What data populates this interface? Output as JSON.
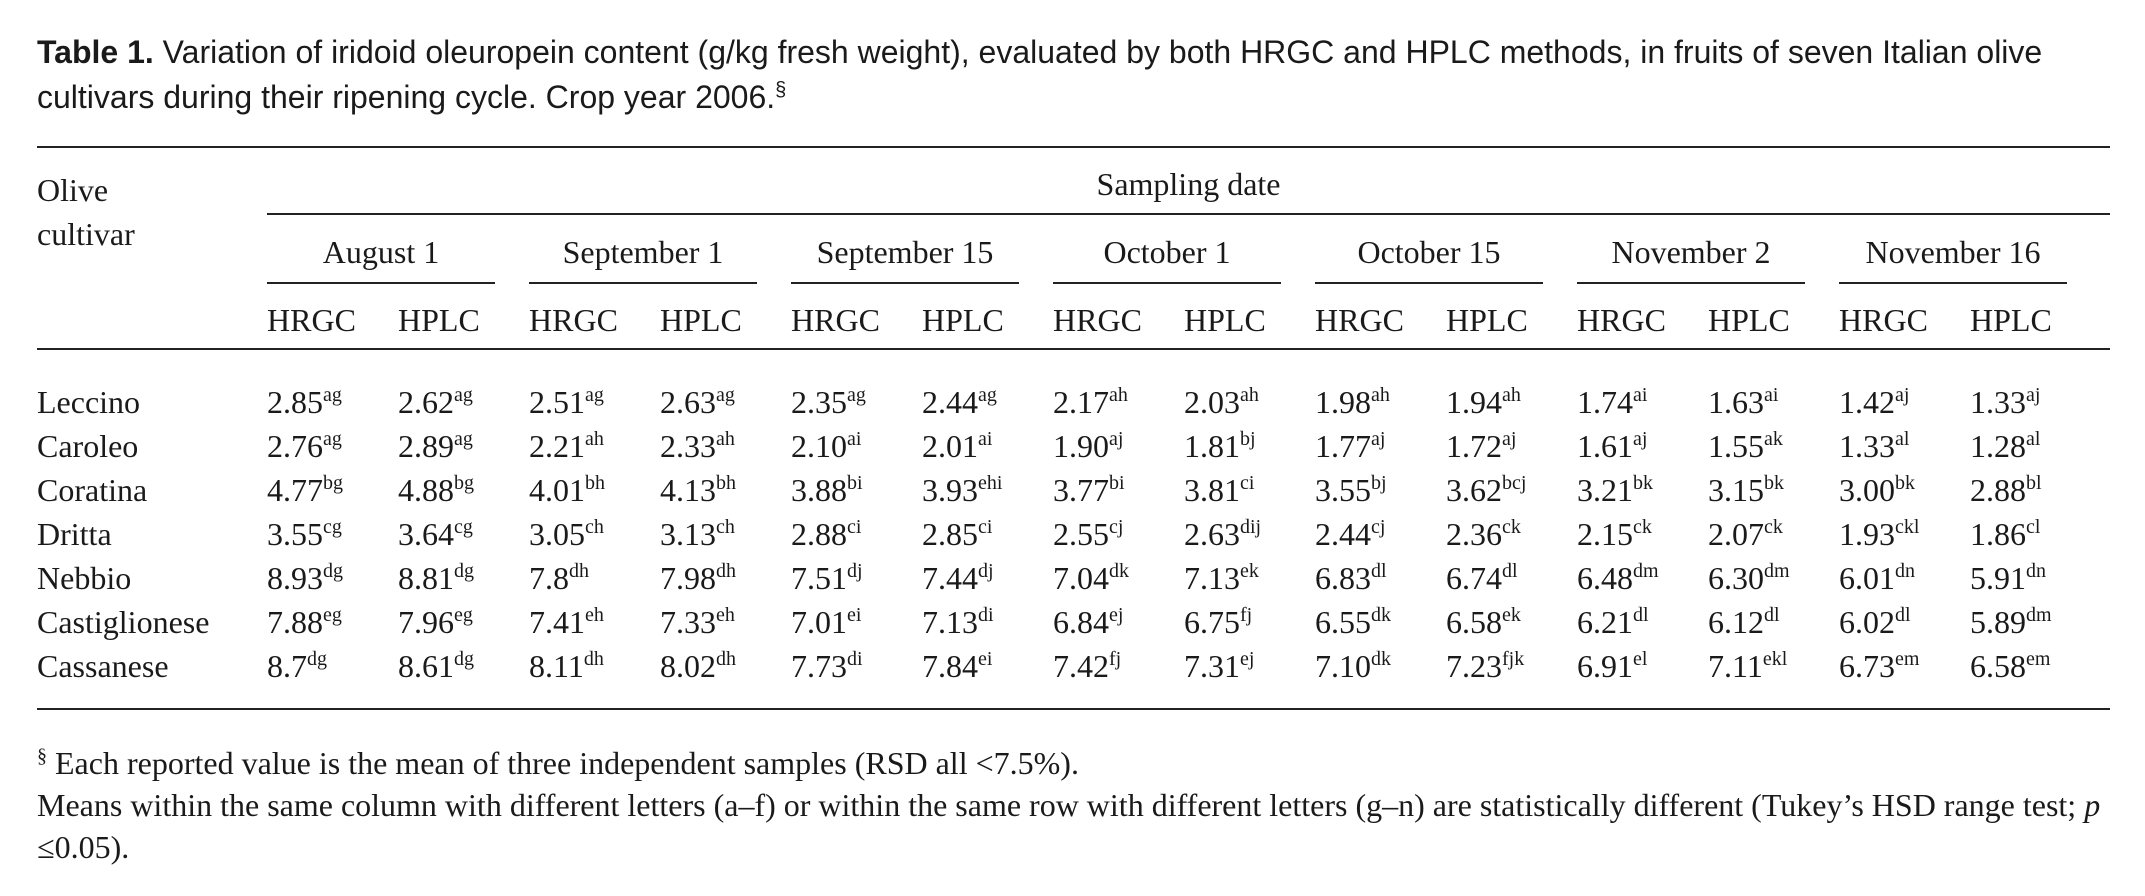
{
  "caption": {
    "label": "Table 1.",
    "text": "Variation of iridoid oleuropein content (g/kg fresh weight), evaluated by both HRGC and HPLC methods, in fruits of seven Italian olive cultivars during their ripening cycle. Crop year 2006.",
    "mark": "§"
  },
  "table": {
    "row_header": "Olive cultivar",
    "group_header": "Sampling date",
    "dates": [
      "August 1",
      "September 1",
      "September 15",
      "October 1",
      "October 15",
      "November 2",
      "November 16"
    ],
    "methods": [
      "HRGC",
      "HPLC"
    ],
    "rows": [
      {
        "cultivar": "Leccino",
        "cells": [
          [
            "2.85",
            "ag"
          ],
          [
            "2.62",
            "ag"
          ],
          [
            "2.51",
            "ag"
          ],
          [
            "2.63",
            "ag"
          ],
          [
            "2.35",
            "ag"
          ],
          [
            "2.44",
            "ag"
          ],
          [
            "2.17",
            "ah"
          ],
          [
            "2.03",
            "ah"
          ],
          [
            "1.98",
            "ah"
          ],
          [
            "1.94",
            "ah"
          ],
          [
            "1.74",
            "ai"
          ],
          [
            "1.63",
            "ai"
          ],
          [
            "1.42",
            "aj"
          ],
          [
            "1.33",
            "aj"
          ]
        ]
      },
      {
        "cultivar": "Caroleo",
        "cells": [
          [
            "2.76",
            "ag"
          ],
          [
            "2.89",
            "ag"
          ],
          [
            "2.21",
            "ah"
          ],
          [
            "2.33",
            "ah"
          ],
          [
            "2.10",
            "ai"
          ],
          [
            "2.01",
            "ai"
          ],
          [
            "1.90",
            "aj"
          ],
          [
            "1.81",
            "bj"
          ],
          [
            "1.77",
            "aj"
          ],
          [
            "1.72",
            "aj"
          ],
          [
            "1.61",
            "aj"
          ],
          [
            "1.55",
            "ak"
          ],
          [
            "1.33",
            "al"
          ],
          [
            "1.28",
            "al"
          ]
        ]
      },
      {
        "cultivar": "Coratina",
        "cells": [
          [
            "4.77",
            "bg"
          ],
          [
            "4.88",
            "bg"
          ],
          [
            "4.01",
            "bh"
          ],
          [
            "4.13",
            "bh"
          ],
          [
            "3.88",
            "bi"
          ],
          [
            "3.93",
            "ehi"
          ],
          [
            "3.77",
            "bi"
          ],
          [
            "3.81",
            "ci"
          ],
          [
            "3.55",
            "bj"
          ],
          [
            "3.62",
            "bcj"
          ],
          [
            "3.21",
            "bk"
          ],
          [
            "3.15",
            "bk"
          ],
          [
            "3.00",
            "bk"
          ],
          [
            "2.88",
            "bl"
          ]
        ]
      },
      {
        "cultivar": "Dritta",
        "cells": [
          [
            "3.55",
            "cg"
          ],
          [
            "3.64",
            "cg"
          ],
          [
            "3.05",
            "ch"
          ],
          [
            "3.13",
            "ch"
          ],
          [
            "2.88",
            "ci"
          ],
          [
            "2.85",
            "ci"
          ],
          [
            "2.55",
            "cj"
          ],
          [
            "2.63",
            "dij"
          ],
          [
            "2.44",
            "cj"
          ],
          [
            "2.36",
            "ck"
          ],
          [
            "2.15",
            "ck"
          ],
          [
            "2.07",
            "ck"
          ],
          [
            "1.93",
            "ckl"
          ],
          [
            "1.86",
            "cl"
          ]
        ]
      },
      {
        "cultivar": "Nebbio",
        "cells": [
          [
            "8.93",
            "dg"
          ],
          [
            "8.81",
            "dg"
          ],
          [
            "7.8",
            "dh"
          ],
          [
            "7.98",
            "dh"
          ],
          [
            "7.51",
            "dj"
          ],
          [
            "7.44",
            "dj"
          ],
          [
            "7.04",
            "dk"
          ],
          [
            "7.13",
            "ek"
          ],
          [
            "6.83",
            "dl"
          ],
          [
            "6.74",
            "dl"
          ],
          [
            "6.48",
            "dm"
          ],
          [
            "6.30",
            "dm"
          ],
          [
            "6.01",
            "dn"
          ],
          [
            "5.91",
            "dn"
          ]
        ]
      },
      {
        "cultivar": "Castiglionese",
        "cells": [
          [
            "7.88",
            "eg"
          ],
          [
            "7.96",
            "eg"
          ],
          [
            "7.41",
            "eh"
          ],
          [
            "7.33",
            "eh"
          ],
          [
            "7.01",
            "ei"
          ],
          [
            "7.13",
            "di"
          ],
          [
            "6.84",
            "ej"
          ],
          [
            "6.75",
            "fj"
          ],
          [
            "6.55",
            "dk"
          ],
          [
            "6.58",
            "ek"
          ],
          [
            "6.21",
            "dl"
          ],
          [
            "6.12",
            "dl"
          ],
          [
            "6.02",
            "dl"
          ],
          [
            "5.89",
            "dm"
          ]
        ]
      },
      {
        "cultivar": "Cassanese",
        "cells": [
          [
            "8.7",
            "dg"
          ],
          [
            "8.61",
            "dg"
          ],
          [
            "8.11",
            "dh"
          ],
          [
            "8.02",
            "dh"
          ],
          [
            "7.73",
            "di"
          ],
          [
            "7.84",
            "ei"
          ],
          [
            "7.42",
            "fj"
          ],
          [
            "7.31",
            "ej"
          ],
          [
            "7.10",
            "dk"
          ],
          [
            "7.23",
            "fjk"
          ],
          [
            "6.91",
            "el"
          ],
          [
            "7.11",
            "ekl"
          ],
          [
            "6.73",
            "em"
          ],
          [
            "6.58",
            "em"
          ]
        ]
      }
    ]
  },
  "footnotes": [
    {
      "mark": "§",
      "text": "Each reported value is the mean of three independent samples (RSD all <7.5%)."
    },
    {
      "text": "Means within the same column with different letters (a–f) or within the same row with different letters (g–n) are statistically different (Tukey’s HSD range test; ",
      "italic": "p",
      "after": " ≤0.05)."
    }
  ]
}
